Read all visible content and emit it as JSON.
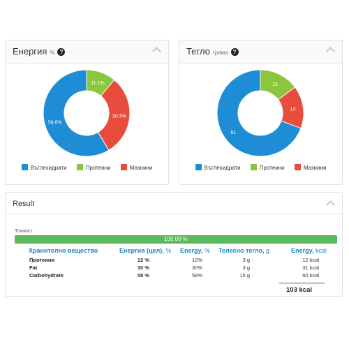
{
  "energy": {
    "title": "Енергия",
    "unit": "%",
    "help_icon": "?",
    "slices": [
      {
        "value": 58.6,
        "label": "58.6%",
        "color": "#1f8dd6"
      },
      {
        "value": 11.1,
        "label": "11.1%",
        "color": "#8cc63e"
      },
      {
        "value": 30.3,
        "label": "30.3%",
        "color": "#e74c3c"
      }
    ]
  },
  "weight": {
    "title": "Тегло",
    "unit": "грама",
    "help_icon": "?",
    "slices": [
      {
        "value": 61,
        "label": "61",
        "color": "#1f8dd6"
      },
      {
        "value": 13,
        "label": "13",
        "color": "#8cc63e"
      },
      {
        "value": 14,
        "label": "14",
        "color": "#e74c3c"
      }
    ]
  },
  "legend": {
    "carbs": "Въглехидрати",
    "protein": "Протеини",
    "fat": "Мазнини",
    "carbs_color": "#1f8dd6",
    "protein_color": "#8cc63e",
    "fat_color": "#e74c3c"
  },
  "chart_data": [
    {
      "type": "pie",
      "title": "Енергия",
      "unit": "%",
      "categories": [
        "Въглехидрати",
        "Протеини",
        "Мазнини"
      ],
      "values": [
        58.6,
        11.1,
        30.3
      ]
    },
    {
      "type": "pie",
      "title": "Тегло",
      "unit": "грама",
      "categories": [
        "Въглехидрати",
        "Протеини",
        "Мазнини"
      ],
      "values": [
        61,
        13,
        14
      ]
    }
  ],
  "result": {
    "title": "Result",
    "accuracy_label": "Точност",
    "accuracy_value": 100.0,
    "accuracy_text": "100.00 %",
    "columns": {
      "nutrient": "Хранително вещество",
      "energy_target": "Енергия (цел),",
      "energy_target_unit": "%",
      "energy": "Energy,",
      "energy_unit": "%",
      "weight": "Телесно тегло,",
      "weight_unit": "g",
      "kcal": "Energy,",
      "kcal_unit": "kcal"
    },
    "rows": [
      {
        "name": "Протеини",
        "target": "12 %",
        "energy": "12%",
        "weight": "3 g",
        "kcal": "12 kcal"
      },
      {
        "name": "Fat",
        "target": "30 %",
        "energy": "30%",
        "weight": "3 g",
        "kcal": "31 kcal"
      },
      {
        "name": "Carbohydrate",
        "target": "58 %",
        "energy": "58%",
        "weight": "15 g",
        "kcal": "60 kcal"
      }
    ],
    "total": "103 kcal"
  }
}
